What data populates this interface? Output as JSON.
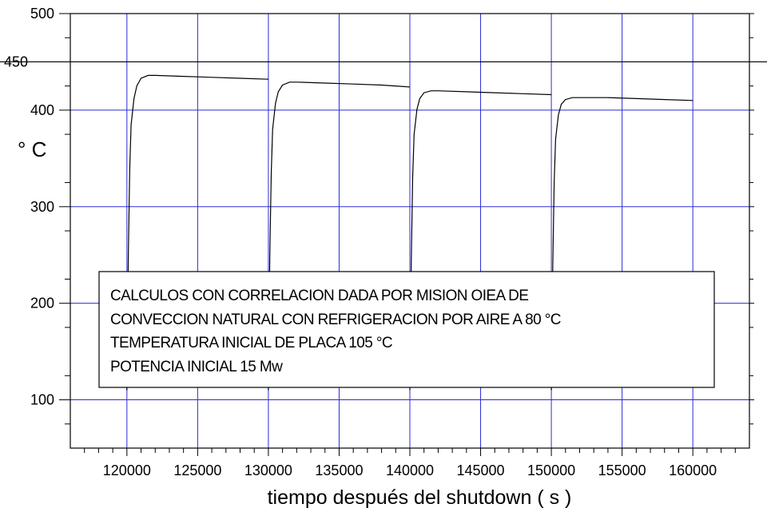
{
  "chart_data": {
    "type": "line",
    "title": "",
    "xlabel": "tiempo después del shutdown ( s )",
    "ylabel": "° C",
    "xlim": [
      116000,
      164000
    ],
    "ylim": [
      50,
      500
    ],
    "x_ticks": [
      120000,
      125000,
      130000,
      135000,
      140000,
      145000,
      150000,
      155000,
      160000
    ],
    "y_ticks": [
      100,
      200,
      300,
      400,
      450,
      500
    ],
    "grid": true,
    "reference_line_y": 450,
    "series": [
      {
        "x": [
          120000,
          120100,
          120200,
          120300,
          120500,
          120700,
          121000,
          121500,
          122000,
          124000,
          126000,
          128000,
          130000
        ],
        "values": [
          110,
          250,
          340,
          385,
          412,
          425,
          433,
          436,
          436,
          435,
          434,
          433,
          432
        ]
      },
      {
        "x": [
          130000,
          130100,
          130200,
          130300,
          130500,
          130700,
          131000,
          131500,
          132000,
          134000,
          136000,
          138000,
          140000
        ],
        "values": [
          110,
          250,
          335,
          380,
          407,
          419,
          426,
          429,
          429,
          428,
          427,
          426,
          424
        ]
      },
      {
        "x": [
          140000,
          140100,
          140200,
          140300,
          140500,
          140700,
          141000,
          141500,
          142000,
          144000,
          146000,
          148000,
          150000
        ],
        "values": [
          110,
          245,
          330,
          375,
          401,
          412,
          418,
          420,
          420,
          419,
          418,
          417,
          416
        ]
      },
      {
        "x": [
          150000,
          150100,
          150200,
          150300,
          150500,
          150700,
          151000,
          151500,
          152000,
          154000,
          156000,
          158000,
          160000
        ],
        "values": [
          110,
          240,
          325,
          370,
          395,
          406,
          411,
          413,
          413,
          413,
          412,
          411,
          410
        ]
      }
    ],
    "annotation": [
      "CALCULOS CON CORRELACION DADA POR MISION OIEA DE",
      "CONVECCION NATURAL CON REFRIGERACION POR AIRE A 80 °C",
      "TEMPERATURA INICIAL DE PLACA 105 °C",
      "POTENCIA INICIAL 15 Mw"
    ],
    "colors": {
      "grid": "#2b2bd6",
      "line": "#000000",
      "axis": "#000000"
    }
  }
}
